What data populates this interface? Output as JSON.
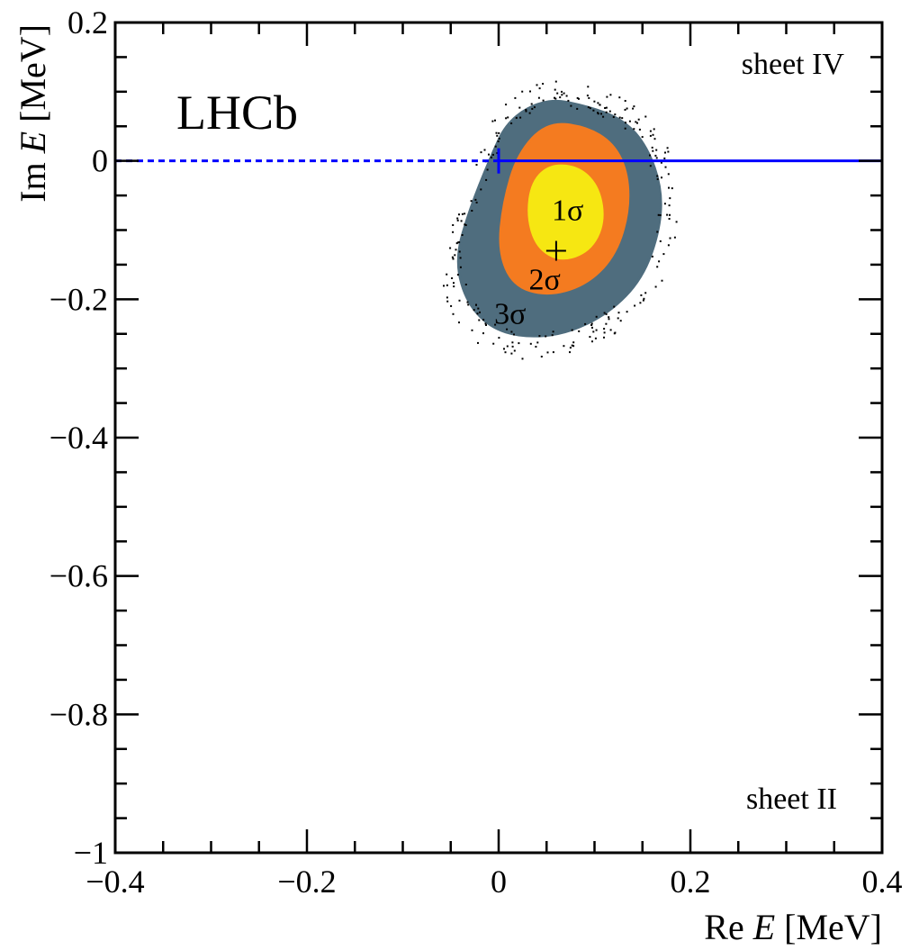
{
  "chart_data": {
    "type": "contour",
    "title": "",
    "experiment_label": "LHCb",
    "xlabel_parts": [
      "Re ",
      "E",
      " [MeV]"
    ],
    "ylabel_parts": [
      "Im ",
      "E",
      " [MeV]"
    ],
    "xlim": [
      -0.4,
      0.4
    ],
    "ylim": [
      -1.0,
      0.2
    ],
    "xticks": [
      {
        "value": -0.4,
        "label": "−0.4"
      },
      {
        "value": -0.2,
        "label": "−0.2"
      },
      {
        "value": 0,
        "label": "0"
      },
      {
        "value": 0.2,
        "label": "0.2"
      },
      {
        "value": 0.4,
        "label": "0.4"
      }
    ],
    "yticks": [
      {
        "value": 0.2,
        "label": "0.2"
      },
      {
        "value": 0,
        "label": "0"
      },
      {
        "value": -0.2,
        "label": "−0.2"
      },
      {
        "value": -0.4,
        "label": "−0.4"
      },
      {
        "value": -0.6,
        "label": "−0.6"
      },
      {
        "value": -0.8,
        "label": "−0.8"
      },
      {
        "value": -1.0,
        "label": "−1"
      }
    ],
    "region_labels": {
      "upper": "sheet IV",
      "lower": "sheet II"
    },
    "best_fit": {
      "re": 0.06,
      "im": -0.13
    },
    "contours": [
      {
        "name": "3σ",
        "color": "#4f6d7e",
        "label_at": [
          0.012,
          -0.22
        ],
        "points": [
          [
            0.05,
            0.09
          ],
          [
            0.09,
            0.08
          ],
          [
            0.13,
            0.06
          ],
          [
            0.155,
            0.02
          ],
          [
            0.17,
            -0.04
          ],
          [
            0.168,
            -0.1
          ],
          [
            0.15,
            -0.17
          ],
          [
            0.115,
            -0.22
          ],
          [
            0.07,
            -0.25
          ],
          [
            0.025,
            -0.255
          ],
          [
            -0.01,
            -0.24
          ],
          [
            -0.035,
            -0.2
          ],
          [
            -0.045,
            -0.14
          ],
          [
            -0.03,
            -0.07
          ],
          [
            -0.01,
            0.0
          ],
          [
            0.01,
            0.06
          ]
        ]
      },
      {
        "name": "2σ",
        "color": "#f47b20",
        "label_at": [
          0.048,
          -0.17
        ],
        "points": [
          [
            0.05,
            0.055
          ],
          [
            0.09,
            0.05
          ],
          [
            0.12,
            0.025
          ],
          [
            0.135,
            -0.02
          ],
          [
            0.135,
            -0.08
          ],
          [
            0.12,
            -0.14
          ],
          [
            0.09,
            -0.18
          ],
          [
            0.05,
            -0.195
          ],
          [
            0.015,
            -0.18
          ],
          [
            0.0,
            -0.13
          ],
          [
            0.005,
            -0.06
          ],
          [
            0.02,
            0.01
          ]
        ]
      },
      {
        "name": "1σ",
        "color": "#f6e712",
        "label_at": [
          0.072,
          -0.07
        ],
        "points": [
          [
            0.055,
            -0.005
          ],
          [
            0.085,
            -0.01
          ],
          [
            0.105,
            -0.04
          ],
          [
            0.11,
            -0.09
          ],
          [
            0.095,
            -0.13
          ],
          [
            0.065,
            -0.145
          ],
          [
            0.04,
            -0.125
          ],
          [
            0.03,
            -0.08
          ],
          [
            0.035,
            -0.03
          ]
        ]
      }
    ],
    "reference_line": {
      "im": 0.0,
      "color": "#0000ff",
      "dashed_range": [
        -0.4,
        0.0
      ],
      "solid_range": [
        0.0,
        0.4
      ],
      "marker_at": 0.0
    }
  }
}
